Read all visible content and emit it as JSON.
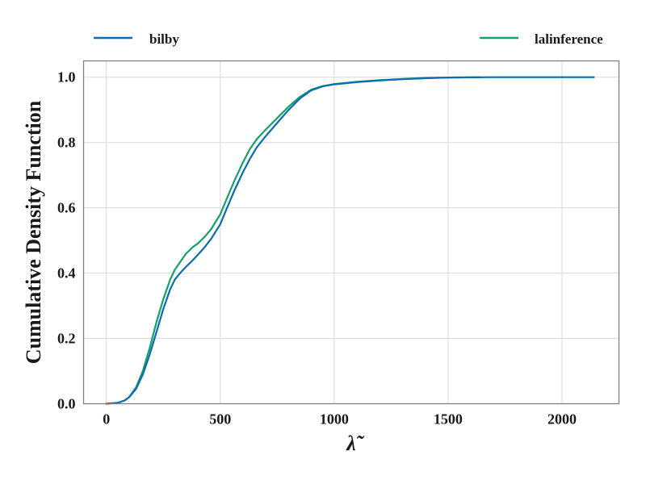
{
  "chart_data": {
    "type": "line",
    "xlabel": "λ̃",
    "ylabel": "Cumulative Density Function",
    "xlim": [
      -100,
      2250
    ],
    "ylim": [
      0.0,
      1.05
    ],
    "xticks": [
      0,
      500,
      1000,
      1500,
      2000
    ],
    "yticks": [
      0.0,
      0.2,
      0.4,
      0.6,
      0.8,
      1.0
    ],
    "xtick_labels": [
      "0",
      "500",
      "1000",
      "1500",
      "2000"
    ],
    "ytick_labels": [
      "0.0",
      "0.2",
      "0.4",
      "0.6",
      "0.8",
      "1.0"
    ],
    "grid": true,
    "legend_placement": "top, outside, spread across",
    "series": [
      {
        "name": "bilby",
        "color": "#0a6db0",
        "x": [
          0,
          50,
          80,
          100,
          130,
          160,
          190,
          220,
          250,
          280,
          300,
          330,
          350,
          380,
          400,
          430,
          460,
          500,
          530,
          560,
          600,
          630,
          660,
          700,
          750,
          800,
          850,
          900,
          950,
          1000,
          1100,
          1200,
          1300,
          1400,
          1500,
          1700,
          1900,
          2140
        ],
        "y": [
          0.0,
          0.003,
          0.01,
          0.02,
          0.045,
          0.09,
          0.15,
          0.22,
          0.29,
          0.35,
          0.38,
          0.405,
          0.42,
          0.44,
          0.455,
          0.478,
          0.505,
          0.55,
          0.6,
          0.65,
          0.71,
          0.75,
          0.785,
          0.82,
          0.86,
          0.9,
          0.935,
          0.96,
          0.972,
          0.978,
          0.985,
          0.99,
          0.994,
          0.997,
          0.999,
          1.0,
          1.0,
          1.0
        ]
      },
      {
        "name": "lalinference",
        "color": "#16a06a",
        "x": [
          0,
          50,
          80,
          100,
          130,
          160,
          190,
          220,
          250,
          280,
          300,
          330,
          350,
          380,
          400,
          430,
          460,
          500,
          530,
          560,
          600,
          630,
          660,
          700,
          750,
          800,
          850,
          900,
          950,
          1000,
          1100,
          1200,
          1300,
          1400,
          1500,
          1640
        ],
        "y": [
          0.0,
          0.003,
          0.01,
          0.02,
          0.05,
          0.1,
          0.17,
          0.25,
          0.32,
          0.38,
          0.41,
          0.44,
          0.46,
          0.48,
          0.49,
          0.51,
          0.535,
          0.58,
          0.63,
          0.68,
          0.74,
          0.78,
          0.81,
          0.84,
          0.875,
          0.91,
          0.94,
          0.962,
          0.973,
          0.979,
          0.986,
          0.991,
          0.995,
          0.998,
          0.999,
          1.0
        ]
      }
    ]
  }
}
